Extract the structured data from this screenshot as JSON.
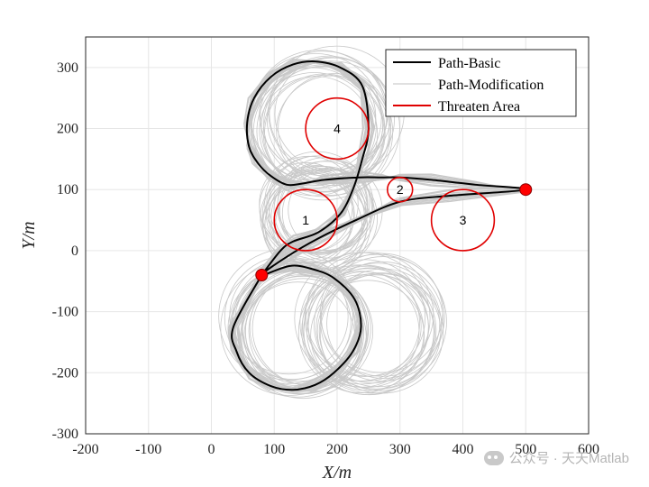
{
  "chart_data": {
    "type": "line",
    "xlabel": "X/m",
    "ylabel": "Y/m",
    "xlim": [
      -200,
      600
    ],
    "ylim": [
      -300,
      350
    ],
    "xticks": [
      -200,
      -100,
      0,
      100,
      200,
      300,
      400,
      500,
      600
    ],
    "yticks": [
      -300,
      -200,
      -100,
      0,
      100,
      200,
      300
    ],
    "grid": true,
    "legend_placement": "top-right",
    "legend": [
      {
        "label": "Path-Basic",
        "color": "#000000"
      },
      {
        "label": "Path-Modification",
        "color": "#c0c0c0"
      },
      {
        "label": "Threaten Area",
        "color": "#e00000"
      }
    ],
    "threat_areas": [
      {
        "label": "1",
        "x": 150,
        "y": 50,
        "r": 50
      },
      {
        "label": "2",
        "x": 300,
        "y": 100,
        "r": 20
      },
      {
        "label": "3",
        "x": 400,
        "y": 50,
        "r": 50
      },
      {
        "label": "4",
        "x": 200,
        "y": 200,
        "r": 50
      }
    ],
    "endpoints": [
      {
        "x": 80,
        "y": -40
      },
      {
        "x": 500,
        "y": 100
      }
    ],
    "loops": [
      {
        "x": 140,
        "y": -125,
        "r": 100
      },
      {
        "x": 180,
        "y": 210,
        "r": 100
      },
      {
        "x": 170,
        "y": 60,
        "r": 75
      },
      {
        "x": 255,
        "y": -120,
        "r": 100
      }
    ],
    "basic_path": [
      [
        80,
        -40
      ],
      [
        35,
        -125
      ],
      [
        40,
        -165
      ],
      [
        60,
        -200
      ],
      [
        95,
        -222
      ],
      [
        130,
        -228
      ],
      [
        165,
        -220
      ],
      [
        195,
        -200
      ],
      [
        225,
        -165
      ],
      [
        238,
        -125
      ],
      [
        228,
        -80
      ],
      [
        195,
        -45
      ],
      [
        160,
        -30
      ],
      [
        125,
        -25
      ],
      [
        80,
        -40
      ],
      [
        120,
        -10
      ],
      [
        170,
        20
      ],
      [
        230,
        50
      ],
      [
        300,
        80
      ],
      [
        380,
        90
      ],
      [
        500,
        100
      ],
      [
        420,
        108
      ],
      [
        350,
        116
      ],
      [
        300,
        120
      ],
      [
        270,
        120
      ],
      [
        235,
        120
      ],
      [
        180,
        116
      ],
      [
        145,
        110
      ],
      [
        120,
        108
      ],
      [
        95,
        122
      ],
      [
        75,
        142
      ],
      [
        60,
        170
      ],
      [
        57,
        210
      ],
      [
        68,
        250
      ],
      [
        95,
        285
      ],
      [
        130,
        305
      ],
      [
        165,
        310
      ],
      [
        205,
        300
      ],
      [
        240,
        270
      ],
      [
        250,
        200
      ],
      [
        240,
        150
      ],
      [
        225,
        100
      ],
      [
        205,
        60
      ],
      [
        170,
        30
      ],
      [
        130,
        15
      ],
      [
        110,
        0
      ],
      [
        80,
        -40
      ]
    ]
  },
  "watermark": {
    "text": "公众号 · 天天Matlab"
  }
}
